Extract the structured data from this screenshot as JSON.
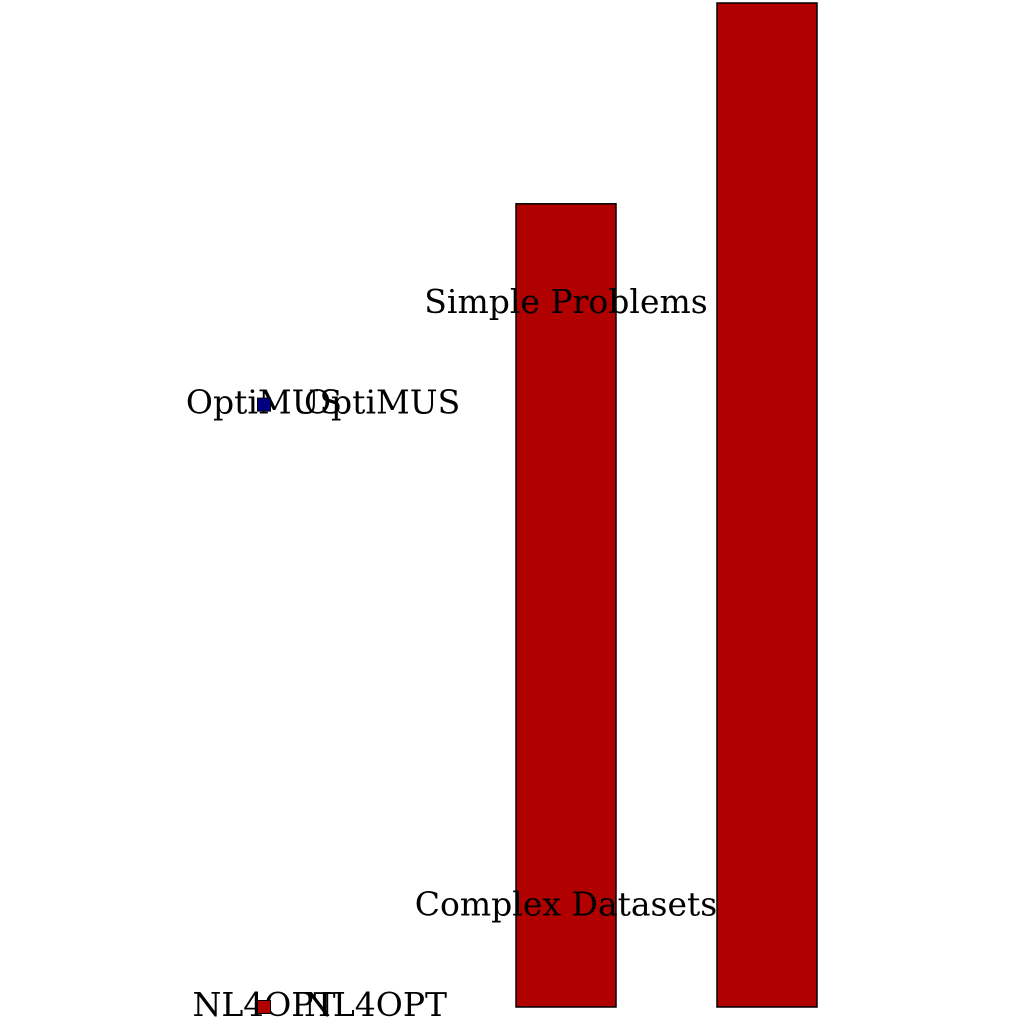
{
  "chart_data": {
    "type": "bar",
    "title": "",
    "xlabel": "",
    "ylabel": "",
    "categories": [
      "",
      ""
    ],
    "values": [
      8,
      10
    ],
    "ylim": [
      0,
      10
    ],
    "bar_color": "#b00000",
    "bar_edge_color": "#000000",
    "annotations": [
      {
        "text": "Simple Problems",
        "y": 7
      },
      {
        "text": "Complex Datasets",
        "y": 1
      }
    ],
    "legend": {
      "placement": "left",
      "entries": [
        {
          "text": "OptiMUS",
          "marker_color": "#000080",
          "overlap_text": "OptiMUS",
          "y": 6
        },
        {
          "text": "NL4OPT",
          "marker_color": "#b00000",
          "overlap_text": "NL4OPT",
          "y": 0
        }
      ]
    },
    "grid": false
  }
}
